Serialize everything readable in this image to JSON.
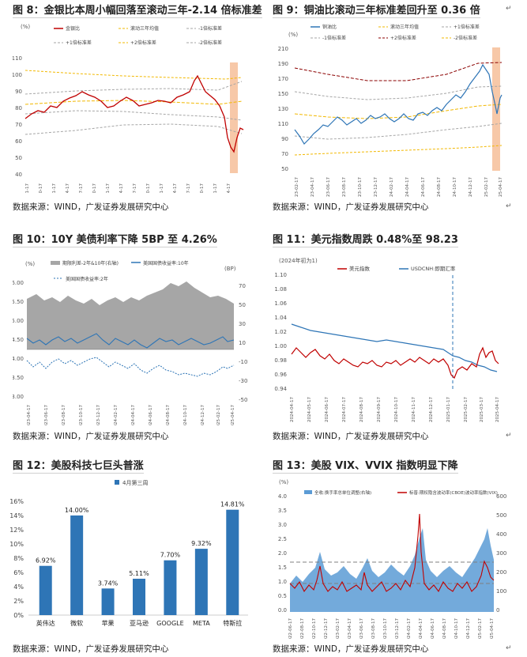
{
  "titles": {
    "f8": "图 8：金银比本周小幅回落至滚动三年-2.14 倍标准差",
    "f9": "图 9：铜油比滚动三年标准差回升至 0.36 倍",
    "f10": "图 10：10Y 美债利率下降 5BP 至 4.26%",
    "f11": "图 11：美元指数周跌 0.48%至 98.23",
    "f12": "图 12：美股科技七巨头普涨",
    "f13": "图 13：美股 VIX、VVIX 指数明显下降"
  },
  "source": "数据来源：WIND，广发证券发展研究中心",
  "colors": {
    "red": "#c00000",
    "blue": "#2e75b6",
    "orange": "#f4b183",
    "gray": "#a6a6a6",
    "darkred": "#8b0000",
    "yellow": "#f2b800"
  },
  "chart8": {
    "unit": "(%)",
    "yticks": [
      "110",
      "100",
      "90",
      "80",
      "70",
      "60",
      "50",
      "40"
    ],
    "xticks": [
      "2021-1-17",
      "2021-10-17",
      "2022-01-17",
      "2022-04-17",
      "2022-07-17",
      "2022-10-17",
      "2023-01-17",
      "2023-04-17",
      "2023-07-17",
      "2023-10-17",
      "2024-01-17",
      "2024-04-17",
      "2024-07-17",
      "2024-10-17",
      "2025-01-17",
      "2025-04-17"
    ],
    "legend": [
      "金银比",
      "滚动三年均值",
      "-1倍标准差",
      "+1倍标准差",
      "+2倍标准差",
      "-2倍标准差"
    ]
  },
  "chart9": {
    "unit": "(%)",
    "yticks": [
      "210",
      "190",
      "170",
      "150",
      "130",
      "110",
      "90",
      "70",
      "50"
    ],
    "xticks": [
      "2023-02-17",
      "2023-04-17",
      "2023-06-17",
      "2023-08-17",
      "2023-10-17",
      "2023-12-17",
      "2024-02-17",
      "2024-04-17",
      "2024-06-17",
      "2024-08-17",
      "2024-10-17",
      "2024-12-17",
      "2025-02-17",
      "2025-04-17"
    ],
    "legend": [
      "铜油比",
      "滚动三年均值",
      "+1倍标准差",
      "-1倍标准差",
      "+2倍标准差",
      "-2倍标准差"
    ]
  },
  "chart10": {
    "unit_left": "(%)",
    "unit_right": "(BP)",
    "yticks_left": [
      "6.00",
      "5.50",
      "5.00",
      "4.50",
      "4.00",
      "3.50",
      "3.00"
    ],
    "yticks_right": [
      "70",
      "50",
      "30",
      "10",
      "-10",
      "-30",
      "-50"
    ],
    "xticks": [
      "2023-04-17",
      "2023-06-17",
      "2023-08-17",
      "2023-10-17",
      "2023-12-17",
      "2024-02-17",
      "2024-04-17",
      "2024-06-17",
      "2024-08-17",
      "2024-10-17",
      "2024-12-17",
      "2025-02-17",
      "2025-04-17"
    ],
    "legend": [
      "期限利差-2年&10年(右轴)",
      "美国国债收益率:10年",
      "美国国债收益率:2年"
    ]
  },
  "chart11": {
    "unit": "(2024年初为1)",
    "yticks": [
      "1.10",
      "1.08",
      "1.06",
      "1.04",
      "1.02",
      "1.00",
      "0.98",
      "0.96",
      "0.94"
    ],
    "xticks": [
      "2024-04-17",
      "2024-05-17",
      "2024-06-17",
      "2024-07-17",
      "2024-08-17",
      "2024-09-17",
      "2024-10-17",
      "2024-11-17",
      "2024-12-17",
      "2025-01-17",
      "2025-02-17",
      "2025-03-17",
      "2025-04-17"
    ],
    "legend": [
      "美元指数",
      "USDCNH:即期汇率"
    ]
  },
  "chart12": {
    "legend": "4月第三周",
    "yticks": [
      "16%",
      "14%",
      "12%",
      "10%",
      "8%",
      "6%",
      "4%",
      "2%",
      "0%"
    ],
    "chart_data": {
      "type": "bar",
      "title": "美股科技七巨头普涨",
      "categories": [
        "英伟达",
        "微软",
        "苹果",
        "亚马逊",
        "GOOGLE",
        "META",
        "特斯拉"
      ],
      "values": [
        6.92,
        14.0,
        3.74,
        5.11,
        7.7,
        9.32,
        14.81
      ],
      "labels": [
        "6.92%",
        "14.00%",
        "3.74%",
        "5.11%",
        "7.70%",
        "9.32%",
        "14.81%"
      ],
      "ylim": [
        0,
        16
      ]
    }
  },
  "chart13": {
    "unit": "(%)",
    "yticks_left": [
      "4.0",
      "3.5",
      "3.0",
      "2.5",
      "2.0",
      "1.5",
      "1.0",
      "0.5",
      "0.0"
    ],
    "yticks_right": [
      "600",
      "500",
      "400",
      "300",
      "200",
      "100",
      "0"
    ],
    "xticks": [
      "2022-06-17",
      "2022-08-17",
      "2022-10-17",
      "2022-12-17",
      "2023-02-17",
      "2023-04-17",
      "2023-06-17",
      "2023-08-17",
      "2023-10-17",
      "2023-12-17",
      "2024-02-17",
      "2024-04-17",
      "2024-06-17",
      "2024-08-17",
      "2024-10-17",
      "2024-12-17",
      "2025-02-17",
      "2025-04-17"
    ],
    "legend": [
      "全收:换手率总单位调整(右轴)",
      "标普:期权隐含波动率(CBOE)波动率指数(VIX)"
    ]
  }
}
